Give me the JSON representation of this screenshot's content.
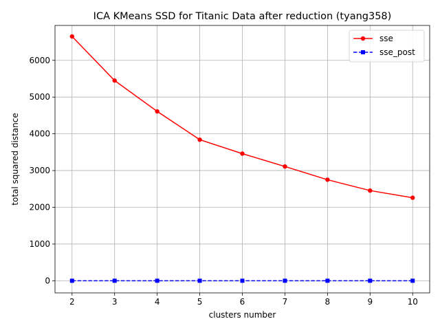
{
  "chart_data": {
    "type": "line",
    "title": "ICA KMeans SSD for Titanic Data after reduction (tyang358)",
    "xlabel": "clusters number",
    "ylabel": "total squared distance",
    "x": [
      2,
      3,
      4,
      5,
      6,
      7,
      8,
      9,
      10
    ],
    "xlim": [
      1.6,
      10.4
    ],
    "ylim": [
      -330,
      6950
    ],
    "xticks": [
      2,
      3,
      4,
      5,
      6,
      7,
      8,
      9,
      10
    ],
    "yticks": [
      0,
      1000,
      2000,
      3000,
      4000,
      5000,
      6000
    ],
    "grid": true,
    "legend_position": "upper right",
    "series": [
      {
        "name": "sse",
        "values": [
          6650,
          5450,
          4610,
          3840,
          3460,
          3110,
          2750,
          2455,
          2260
        ],
        "color": "#ff0000",
        "line_style": "solid",
        "marker": "circle"
      },
      {
        "name": "sse_post",
        "values": [
          0.5,
          0.5,
          0.5,
          0.5,
          0.5,
          0.5,
          0.5,
          0.5,
          0.5
        ],
        "color": "#0000ff",
        "line_style": "dashed",
        "marker": "square"
      }
    ]
  }
}
